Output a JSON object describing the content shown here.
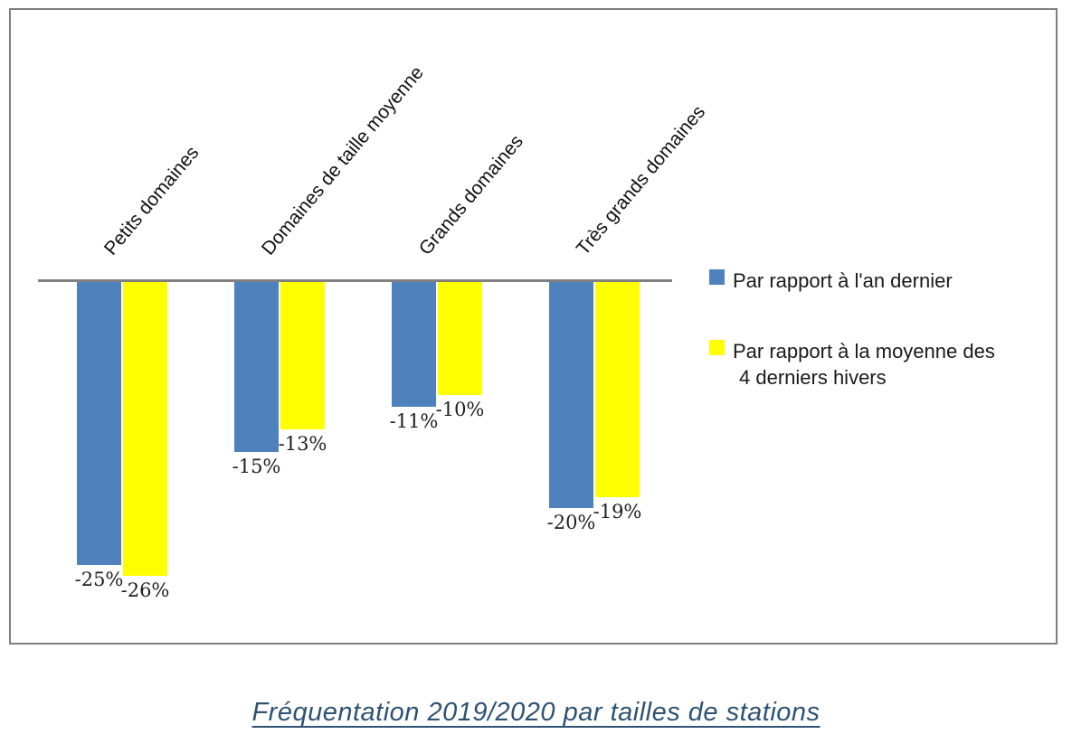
{
  "figure": {
    "caption": "Fréquentation 2019/2020 par tailles de stations",
    "caption_color": "#2e5274",
    "background_color": "#ffffff",
    "frame_color": "#808080"
  },
  "legend": {
    "items": [
      {
        "label": "Par rapport à l'an dernier",
        "color": "#4f81bd"
      },
      {
        "label_line1": "Par rapport à la moyenne des",
        "label_line2": "4 derniers hivers",
        "color": "#ffff00"
      }
    ]
  },
  "chart_data": {
    "type": "bar",
    "orientation": "vertical",
    "title": "Fréquentation 2019/2020 par tailles de stations",
    "categories": [
      "Petits domaines",
      "Domaines de taille moyenne",
      "Grands domaines",
      "Très grands domaines"
    ],
    "series": [
      {
        "name": "Par rapport à l'an dernier",
        "color": "#4f81bd",
        "values": [
          -25,
          -15,
          -11,
          -20
        ],
        "labels": [
          "-25%",
          "-15%",
          "-11%",
          "-20%"
        ]
      },
      {
        "name": "Par rapport à la moyenne des 4 derniers hivers",
        "color": "#ffff00",
        "values": [
          -26,
          -13,
          -10,
          -19
        ],
        "labels": [
          "-26%",
          "-13%",
          "-10%",
          "-19%"
        ]
      }
    ],
    "baseline_value": 0,
    "ylim": [
      -30,
      0
    ],
    "gridlines": false,
    "value_axis_visible": false,
    "axis_color": "#808080",
    "legend_position": "right"
  }
}
